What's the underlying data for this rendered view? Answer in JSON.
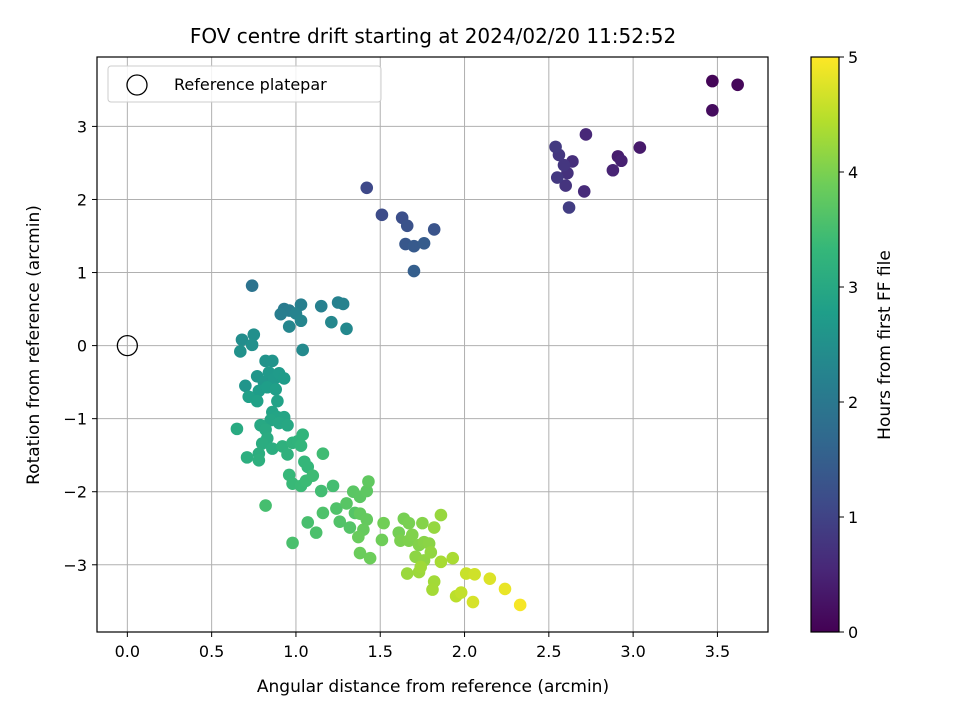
{
  "chart_data": {
    "type": "scatter",
    "title": "FOV centre drift starting at 2024/02/20 11:52:52",
    "xlabel": "Angular distance from reference (arcmin)",
    "ylabel": "Rotation from reference (arcmin)",
    "xlim": [
      -0.18,
      3.8
    ],
    "ylim": [
      -3.92,
      3.95
    ],
    "xticks": [
      0.0,
      0.5,
      1.0,
      1.5,
      2.0,
      2.5,
      3.0,
      3.5
    ],
    "xtick_labels": [
      "0.0",
      "0.5",
      "1.0",
      "1.5",
      "2.0",
      "2.5",
      "3.0",
      "3.5"
    ],
    "yticks": [
      -3,
      -2,
      -1,
      0,
      1,
      2,
      3
    ],
    "ytick_labels": [
      "−3",
      "−2",
      "−1",
      "0",
      "1",
      "2",
      "3"
    ],
    "grid": true,
    "legend": {
      "placement": "upper-left",
      "entries": [
        "Reference platepar"
      ]
    },
    "colorbar": {
      "label": "Hours from first FF file",
      "colormap": "viridis",
      "range": [
        0,
        5
      ],
      "ticks": [
        0,
        1,
        2,
        3,
        4,
        5
      ],
      "tick_labels": [
        "0",
        "1",
        "2",
        "3",
        "4",
        "5"
      ]
    },
    "reference_point": {
      "x": 0.0,
      "y": 0.0,
      "label": "Reference platepar"
    },
    "points": [
      {
        "x": 3.47,
        "y": 3.62,
        "h": 0.05
      },
      {
        "x": 3.62,
        "y": 3.57,
        "h": 0.1
      },
      {
        "x": 3.47,
        "y": 3.22,
        "h": 0.15
      },
      {
        "x": 3.04,
        "y": 2.71,
        "h": 0.35
      },
      {
        "x": 2.91,
        "y": 2.59,
        "h": 0.4
      },
      {
        "x": 2.93,
        "y": 2.53,
        "h": 0.45
      },
      {
        "x": 2.88,
        "y": 2.4,
        "h": 0.5
      },
      {
        "x": 2.72,
        "y": 2.89,
        "h": 0.55
      },
      {
        "x": 2.71,
        "y": 2.11,
        "h": 0.6
      },
      {
        "x": 2.64,
        "y": 2.52,
        "h": 0.65
      },
      {
        "x": 2.61,
        "y": 2.36,
        "h": 0.7
      },
      {
        "x": 2.6,
        "y": 2.19,
        "h": 0.75
      },
      {
        "x": 2.59,
        "y": 2.47,
        "h": 0.78
      },
      {
        "x": 2.56,
        "y": 2.61,
        "h": 0.8
      },
      {
        "x": 2.55,
        "y": 2.3,
        "h": 0.82
      },
      {
        "x": 2.54,
        "y": 2.72,
        "h": 0.85
      },
      {
        "x": 2.62,
        "y": 1.89,
        "h": 0.9
      },
      {
        "x": 1.42,
        "y": 2.16,
        "h": 1.1
      },
      {
        "x": 1.51,
        "y": 1.79,
        "h": 1.15
      },
      {
        "x": 1.63,
        "y": 1.75,
        "h": 1.2
      },
      {
        "x": 1.66,
        "y": 1.64,
        "h": 1.25
      },
      {
        "x": 1.82,
        "y": 1.59,
        "h": 1.3
      },
      {
        "x": 1.65,
        "y": 1.39,
        "h": 1.35
      },
      {
        "x": 1.7,
        "y": 1.36,
        "h": 1.4
      },
      {
        "x": 1.76,
        "y": 1.4,
        "h": 1.45
      },
      {
        "x": 1.7,
        "y": 1.02,
        "h": 1.5
      },
      {
        "x": 0.74,
        "y": 0.82,
        "h": 1.9
      },
      {
        "x": 0.93,
        "y": 0.5,
        "h": 2.05
      },
      {
        "x": 0.96,
        "y": 0.48,
        "h": 2.1
      },
      {
        "x": 0.91,
        "y": 0.43,
        "h": 2.12
      },
      {
        "x": 1.03,
        "y": 0.56,
        "h": 2.15
      },
      {
        "x": 1.15,
        "y": 0.54,
        "h": 2.18
      },
      {
        "x": 1.25,
        "y": 0.59,
        "h": 2.2
      },
      {
        "x": 1.28,
        "y": 0.57,
        "h": 2.22
      },
      {
        "x": 1.0,
        "y": 0.44,
        "h": 2.25
      },
      {
        "x": 1.03,
        "y": 0.34,
        "h": 2.28
      },
      {
        "x": 0.96,
        "y": 0.26,
        "h": 2.3
      },
      {
        "x": 1.21,
        "y": 0.32,
        "h": 2.32
      },
      {
        "x": 1.3,
        "y": 0.23,
        "h": 2.35
      },
      {
        "x": 1.04,
        "y": -0.06,
        "h": 2.38
      },
      {
        "x": 0.68,
        "y": 0.08,
        "h": 2.45
      },
      {
        "x": 0.75,
        "y": 0.15,
        "h": 2.48
      },
      {
        "x": 0.74,
        "y": 0.01,
        "h": 2.5
      },
      {
        "x": 0.67,
        "y": -0.08,
        "h": 2.52
      },
      {
        "x": 0.82,
        "y": -0.21,
        "h": 2.55
      },
      {
        "x": 0.86,
        "y": -0.21,
        "h": 2.58
      },
      {
        "x": 0.7,
        "y": -0.55,
        "h": 2.6
      },
      {
        "x": 0.77,
        "y": -0.42,
        "h": 2.62
      },
      {
        "x": 0.81,
        "y": -0.5,
        "h": 2.65
      },
      {
        "x": 0.84,
        "y": -0.37,
        "h": 2.68
      },
      {
        "x": 0.87,
        "y": -0.46,
        "h": 2.7
      },
      {
        "x": 0.9,
        "y": -0.38,
        "h": 2.72
      },
      {
        "x": 0.93,
        "y": -0.45,
        "h": 2.74
      },
      {
        "x": 0.78,
        "y": -0.62,
        "h": 2.76
      },
      {
        "x": 0.83,
        "y": -0.57,
        "h": 2.78
      },
      {
        "x": 0.88,
        "y": -0.6,
        "h": 2.8
      },
      {
        "x": 0.72,
        "y": -0.7,
        "h": 2.82
      },
      {
        "x": 0.77,
        "y": -0.76,
        "h": 2.84
      },
      {
        "x": 0.89,
        "y": -0.76,
        "h": 2.86
      },
      {
        "x": 0.86,
        "y": -0.91,
        "h": 2.88
      },
      {
        "x": 0.89,
        "y": -0.98,
        "h": 2.9
      },
      {
        "x": 0.93,
        "y": -0.98,
        "h": 2.92
      },
      {
        "x": 0.85,
        "y": -1.02,
        "h": 2.94
      },
      {
        "x": 0.9,
        "y": -1.06,
        "h": 2.96
      },
      {
        "x": 0.95,
        "y": -1.09,
        "h": 2.98
      },
      {
        "x": 0.79,
        "y": -1.09,
        "h": 3.0
      },
      {
        "x": 0.82,
        "y": -1.15,
        "h": 3.02
      },
      {
        "x": 0.65,
        "y": -1.14,
        "h": 3.04
      },
      {
        "x": 0.83,
        "y": -1.27,
        "h": 3.06
      },
      {
        "x": 0.8,
        "y": -1.34,
        "h": 3.08
      },
      {
        "x": 0.86,
        "y": -1.41,
        "h": 3.1
      },
      {
        "x": 0.78,
        "y": -1.48,
        "h": 3.12
      },
      {
        "x": 0.71,
        "y": -1.53,
        "h": 3.14
      },
      {
        "x": 0.78,
        "y": -1.57,
        "h": 3.16
      },
      {
        "x": 0.92,
        "y": -1.38,
        "h": 3.18
      },
      {
        "x": 0.95,
        "y": -1.49,
        "h": 3.2
      },
      {
        "x": 0.98,
        "y": -1.33,
        "h": 3.22
      },
      {
        "x": 1.01,
        "y": -1.31,
        "h": 3.24
      },
      {
        "x": 1.04,
        "y": -1.22,
        "h": 3.26
      },
      {
        "x": 1.03,
        "y": -1.37,
        "h": 3.28
      },
      {
        "x": 1.05,
        "y": -1.59,
        "h": 3.3
      },
      {
        "x": 1.07,
        "y": -1.66,
        "h": 3.32
      },
      {
        "x": 0.96,
        "y": -1.77,
        "h": 3.34
      },
      {
        "x": 0.98,
        "y": -1.89,
        "h": 3.36
      },
      {
        "x": 1.03,
        "y": -1.92,
        "h": 3.38
      },
      {
        "x": 1.06,
        "y": -1.85,
        "h": 3.4
      },
      {
        "x": 1.1,
        "y": -1.78,
        "h": 3.42
      },
      {
        "x": 1.16,
        "y": -1.48,
        "h": 3.44
      },
      {
        "x": 1.15,
        "y": -1.99,
        "h": 3.46
      },
      {
        "x": 1.22,
        "y": -1.92,
        "h": 3.48
      },
      {
        "x": 0.82,
        "y": -2.19,
        "h": 3.5
      },
      {
        "x": 1.07,
        "y": -2.42,
        "h": 3.52
      },
      {
        "x": 0.98,
        "y": -2.7,
        "h": 3.54
      },
      {
        "x": 1.12,
        "y": -2.56,
        "h": 3.56
      },
      {
        "x": 1.16,
        "y": -2.29,
        "h": 3.58
      },
      {
        "x": 1.24,
        "y": -2.23,
        "h": 3.6
      },
      {
        "x": 1.26,
        "y": -2.41,
        "h": 3.62
      },
      {
        "x": 1.32,
        "y": -2.49,
        "h": 3.64
      },
      {
        "x": 1.35,
        "y": -2.29,
        "h": 3.66
      },
      {
        "x": 1.3,
        "y": -2.16,
        "h": 3.68
      },
      {
        "x": 1.34,
        "y": -2.0,
        "h": 3.7
      },
      {
        "x": 1.38,
        "y": -2.07,
        "h": 3.72
      },
      {
        "x": 1.42,
        "y": -1.99,
        "h": 3.74
      },
      {
        "x": 1.43,
        "y": -1.86,
        "h": 3.76
      },
      {
        "x": 1.38,
        "y": -2.3,
        "h": 3.78
      },
      {
        "x": 1.42,
        "y": -2.38,
        "h": 3.8
      },
      {
        "x": 1.4,
        "y": -2.52,
        "h": 3.82
      },
      {
        "x": 1.37,
        "y": -2.62,
        "h": 3.84
      },
      {
        "x": 1.38,
        "y": -2.84,
        "h": 3.86
      },
      {
        "x": 1.44,
        "y": -2.91,
        "h": 3.88
      },
      {
        "x": 1.51,
        "y": -2.66,
        "h": 3.9
      },
      {
        "x": 1.52,
        "y": -2.43,
        "h": 3.92
      },
      {
        "x": 1.61,
        "y": -2.56,
        "h": 3.94
      },
      {
        "x": 1.64,
        "y": -2.37,
        "h": 3.96
      },
      {
        "x": 1.67,
        "y": -2.43,
        "h": 3.98
      },
      {
        "x": 1.62,
        "y": -2.67,
        "h": 4.0
      },
      {
        "x": 1.67,
        "y": -2.67,
        "h": 4.02
      },
      {
        "x": 1.69,
        "y": -2.59,
        "h": 4.04
      },
      {
        "x": 1.73,
        "y": -2.73,
        "h": 4.06
      },
      {
        "x": 1.75,
        "y": -2.43,
        "h": 4.08
      },
      {
        "x": 1.76,
        "y": -2.69,
        "h": 4.1
      },
      {
        "x": 1.79,
        "y": -2.71,
        "h": 4.12
      },
      {
        "x": 1.71,
        "y": -2.89,
        "h": 4.14
      },
      {
        "x": 1.76,
        "y": -2.94,
        "h": 4.16
      },
      {
        "x": 1.8,
        "y": -2.83,
        "h": 4.18
      },
      {
        "x": 1.82,
        "y": -2.49,
        "h": 4.2
      },
      {
        "x": 1.86,
        "y": -2.32,
        "h": 4.22
      },
      {
        "x": 1.66,
        "y": -3.12,
        "h": 4.24
      },
      {
        "x": 1.73,
        "y": -3.1,
        "h": 4.26
      },
      {
        "x": 1.74,
        "y": -3.03,
        "h": 4.28
      },
      {
        "x": 1.82,
        "y": -3.23,
        "h": 4.3
      },
      {
        "x": 1.81,
        "y": -3.34,
        "h": 4.32
      },
      {
        "x": 1.86,
        "y": -2.96,
        "h": 4.34
      },
      {
        "x": 1.93,
        "y": -2.91,
        "h": 4.36
      },
      {
        "x": 1.95,
        "y": -3.43,
        "h": 4.5
      },
      {
        "x": 1.98,
        "y": -3.38,
        "h": 4.55
      },
      {
        "x": 2.01,
        "y": -3.12,
        "h": 4.6
      },
      {
        "x": 2.06,
        "y": -3.13,
        "h": 4.65
      },
      {
        "x": 2.05,
        "y": -3.51,
        "h": 4.7
      },
      {
        "x": 2.15,
        "y": -3.19,
        "h": 4.75
      },
      {
        "x": 2.24,
        "y": -3.33,
        "h": 4.85
      },
      {
        "x": 2.33,
        "y": -3.55,
        "h": 4.95
      }
    ]
  }
}
